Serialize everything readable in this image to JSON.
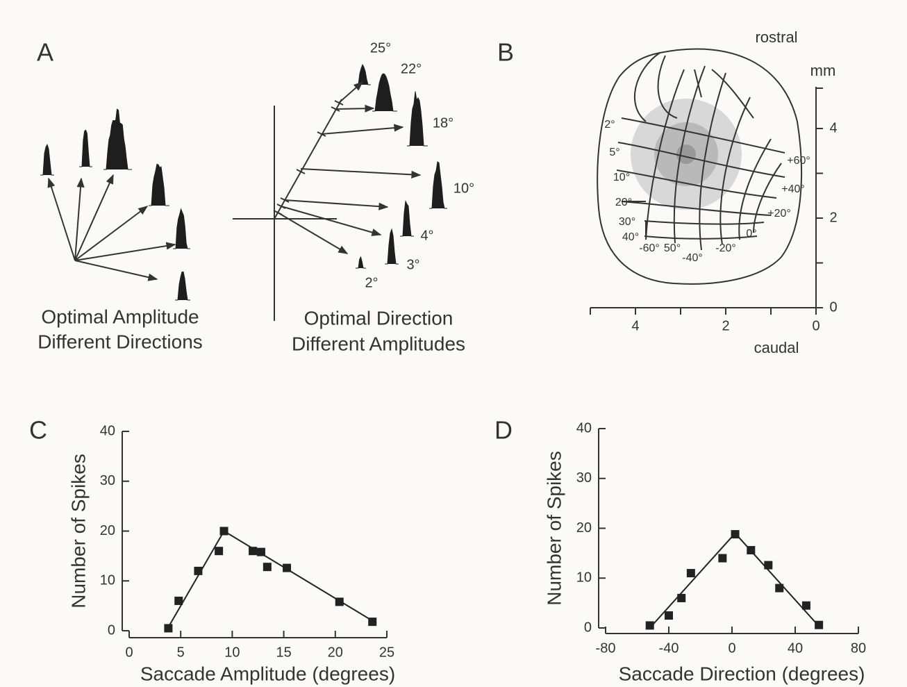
{
  "panel_a": {
    "label": "A",
    "left_caption": [
      "Optimal Amplitude",
      "Different Directions"
    ],
    "right_caption": [
      "Optimal Direction",
      "Different Amplitudes"
    ],
    "amplitude_labels": [
      "25°",
      "22°",
      "18°",
      "10°",
      "4°",
      "3°",
      "2°"
    ]
  },
  "panel_b": {
    "label": "B",
    "top_label": "rostral",
    "bottom_label": "caudal",
    "unit_label": "mm",
    "xticks": [
      0,
      2,
      4
    ],
    "yticks": [
      0,
      2,
      4
    ],
    "amplitude_labels": [
      "2°",
      "5°",
      "10°",
      "20°",
      "30°",
      "40°",
      "50°"
    ],
    "direction_labels": [
      "-60°",
      "-40°",
      "-20°",
      "0°",
      "+20°",
      "+40°",
      "+60°"
    ]
  },
  "chart_data": [
    {
      "type": "scatter",
      "panel_label": "C",
      "x_label": "Saccade Amplitude (degrees)",
      "y_label": "Number of Spikes",
      "x": [
        3.8,
        4.8,
        6.7,
        8.7,
        9.2,
        12.0,
        12.8,
        13.4,
        15.3,
        20.4,
        23.6
      ],
      "values": [
        0.5,
        6,
        12,
        16,
        20,
        16,
        15.8,
        12.8,
        12.6,
        5.8,
        1.8
      ],
      "fit": {
        "x": [
          3.6,
          9.2,
          24
        ],
        "values": [
          0,
          20,
          1.5
        ]
      },
      "color": "#222222",
      "xlim": [
        0,
        25
      ],
      "xticks": [
        0,
        5,
        10,
        15,
        20,
        25
      ],
      "ylim": [
        0,
        40
      ],
      "yticks": [
        0,
        10,
        20,
        30,
        40
      ]
    },
    {
      "type": "scatter",
      "panel_label": "D",
      "x_label": "Saccade Direction (degrees)",
      "y_label": "Number of Spikes",
      "x": [
        -52,
        -40,
        -32,
        -26,
        -6,
        2,
        12,
        23,
        30,
        47,
        55
      ],
      "values": [
        0.5,
        2.5,
        6,
        11,
        14,
        18.8,
        15.6,
        12.6,
        8,
        4.5,
        0.6
      ],
      "fit": {
        "x": [
          -52,
          2,
          56
        ],
        "values": [
          0,
          19,
          0
        ]
      },
      "color": "#222222",
      "xlim": [
        -80,
        80
      ],
      "xticks": [
        -80,
        -40,
        0,
        40,
        80
      ],
      "ylim": [
        0,
        40
      ],
      "yticks": [
        0,
        10,
        20,
        30,
        40
      ]
    }
  ]
}
